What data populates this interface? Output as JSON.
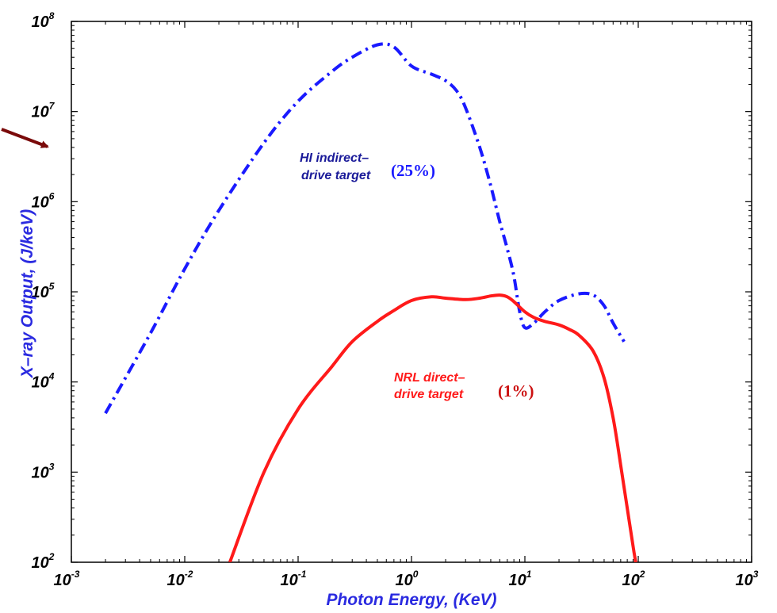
{
  "chart_data": {
    "type": "line",
    "x_scale": "log",
    "y_scale": "log",
    "xlim": [
      0.001,
      1000
    ],
    "ylim": [
      100,
      100000000
    ],
    "xlabel": "Photon Energy, (KeV)",
    "ylabel": "X–ray Output, (J/keV)",
    "x_ticks": [
      {
        "base": "10",
        "exp": "-3",
        "value": 0.001
      },
      {
        "base": "10",
        "exp": "-2",
        "value": 0.01
      },
      {
        "base": "10",
        "exp": "-1",
        "value": 0.1
      },
      {
        "base": "10",
        "exp": "0",
        "value": 1
      },
      {
        "base": "10",
        "exp": "1",
        "value": 10
      },
      {
        "base": "10",
        "exp": "2",
        "value": 100
      },
      {
        "base": "10",
        "exp": "3",
        "value": 1000
      }
    ],
    "y_ticks": [
      {
        "base": "10",
        "exp": "2",
        "value": 100
      },
      {
        "base": "10",
        "exp": "3",
        "value": 1000
      },
      {
        "base": "10",
        "exp": "4",
        "value": 10000
      },
      {
        "base": "10",
        "exp": "5",
        "value": 100000
      },
      {
        "base": "10",
        "exp": "6",
        "value": 1000000
      },
      {
        "base": "10",
        "exp": "7",
        "value": 10000000
      },
      {
        "base": "10",
        "exp": "8",
        "value": 100000000
      }
    ],
    "grid": false,
    "series": [
      {
        "name": "HI indirect–drive target",
        "color": "#1a1aff",
        "line_style": "dash-dot",
        "annotation_lines": [
          "HI indirect–",
          "drive target"
        ],
        "percent_label": "(25%)",
        "x": [
          0.002,
          0.005,
          0.01,
          0.02,
          0.05,
          0.1,
          0.2,
          0.3,
          0.5,
          0.7,
          1.0,
          1.5,
          2.0,
          2.5,
          3.0,
          4.0,
          5.0,
          6.0,
          7.0,
          8.0,
          9.0,
          10.0,
          12.0,
          15.0,
          20.0,
          30.0,
          40.0,
          50.0,
          60.0,
          75.0
        ],
        "y": [
          4500,
          35000,
          180000,
          800000,
          4500000,
          13000000,
          28000000,
          40000000,
          55000000,
          52000000,
          32000000,
          26000000,
          22000000,
          17000000,
          11000000,
          4000000,
          1500000,
          600000,
          300000,
          150000,
          60000,
          40000,
          45000,
          60000,
          80000,
          95000,
          92000,
          70000,
          45000,
          28000
        ]
      },
      {
        "name": "NRL direct–drive target",
        "color": "#ff1a1a",
        "line_style": "solid",
        "annotation_lines": [
          "NRL direct–",
          "drive target"
        ],
        "percent_label": "(1%)",
        "x": [
          0.025,
          0.05,
          0.1,
          0.2,
          0.3,
          0.5,
          0.7,
          1.0,
          1.5,
          2.0,
          3.0,
          4.0,
          5.0,
          6.0,
          7.0,
          8.0,
          10.0,
          12.0,
          15.0,
          20.0,
          25.0,
          30.0,
          40.0,
          50.0,
          60.0,
          70.0,
          80.0,
          90.0,
          95.0
        ],
        "y": [
          100,
          1000,
          5000,
          15000,
          28000,
          47000,
          62000,
          80000,
          88000,
          85000,
          82000,
          85000,
          90000,
          92000,
          88000,
          78000,
          60000,
          52000,
          47000,
          43000,
          38000,
          33000,
          22000,
          11000,
          4000,
          1200,
          400,
          150,
          100
        ]
      }
    ]
  }
}
